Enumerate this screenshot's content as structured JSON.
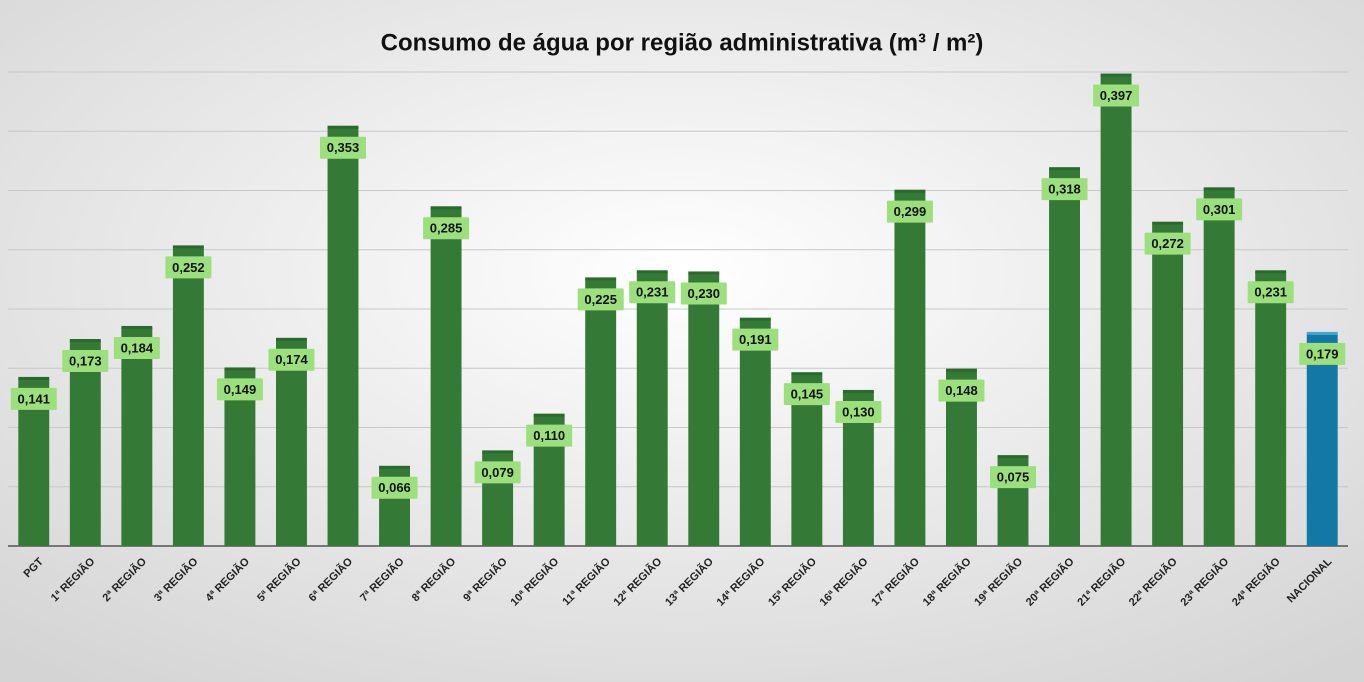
{
  "chart_data": {
    "type": "bar",
    "title": "Consumo de água por região administrativa (m³ / m²)",
    "categories": [
      "PGT",
      "1ª REGIÃO",
      "2ª REGIÃO",
      "3ª REGIÃO",
      "4ª REGIÃO",
      "5ª REGIÃO",
      "6ª REGIÃO",
      "7ª REGIÃO",
      "8ª REGIÃO",
      "9ª REGIÃO",
      "10ª REGIÃO",
      "11ª REGIÃO",
      "12ª REGIÃO",
      "13ª REGIÃO",
      "14ª REGIÃO",
      "15ª REGIÃO",
      "16ª REGIÃO",
      "17ª REGIÃO",
      "18ª REGIÃO",
      "19ª REGIÃO",
      "20ª REGIÃO",
      "21ª REGIÃO",
      "22ª REGIÃO",
      "23ª REGIÃO",
      "24ª REGIÃO",
      "NACIONAL"
    ],
    "values": [
      0.141,
      0.173,
      0.184,
      0.252,
      0.149,
      0.174,
      0.353,
      0.066,
      0.285,
      0.079,
      0.11,
      0.225,
      0.231,
      0.23,
      0.191,
      0.145,
      0.13,
      0.299,
      0.148,
      0.075,
      0.318,
      0.397,
      0.272,
      0.301,
      0.231,
      0.179
    ],
    "value_labels": [
      "0,141",
      "0,173",
      "0,184",
      "0,252",
      "0,149",
      "0,174",
      "0,353",
      "0,066",
      "0,285",
      "0,079",
      "0,110",
      "0,225",
      "0,231",
      "0,230",
      "0,191",
      "0,145",
      "0,130",
      "0,299",
      "0,148",
      "0,075",
      "0,318",
      "0,397",
      "0,272",
      "0,301",
      "0,231",
      "0,179"
    ],
    "colors": [
      "#347a36",
      "#347a36",
      "#347a36",
      "#347a36",
      "#347a36",
      "#347a36",
      "#347a36",
      "#347a36",
      "#347a36",
      "#347a36",
      "#347a36",
      "#347a36",
      "#347a36",
      "#347a36",
      "#347a36",
      "#347a36",
      "#347a36",
      "#347a36",
      "#347a36",
      "#347a36",
      "#347a36",
      "#347a36",
      "#347a36",
      "#347a36",
      "#347a36",
      "#1478a6"
    ],
    "ylim": [
      0,
      0.4
    ],
    "yticks": [
      0,
      0.05,
      0.1,
      0.15,
      0.2,
      0.25,
      0.3,
      0.35,
      0.4
    ],
    "grid": true
  }
}
